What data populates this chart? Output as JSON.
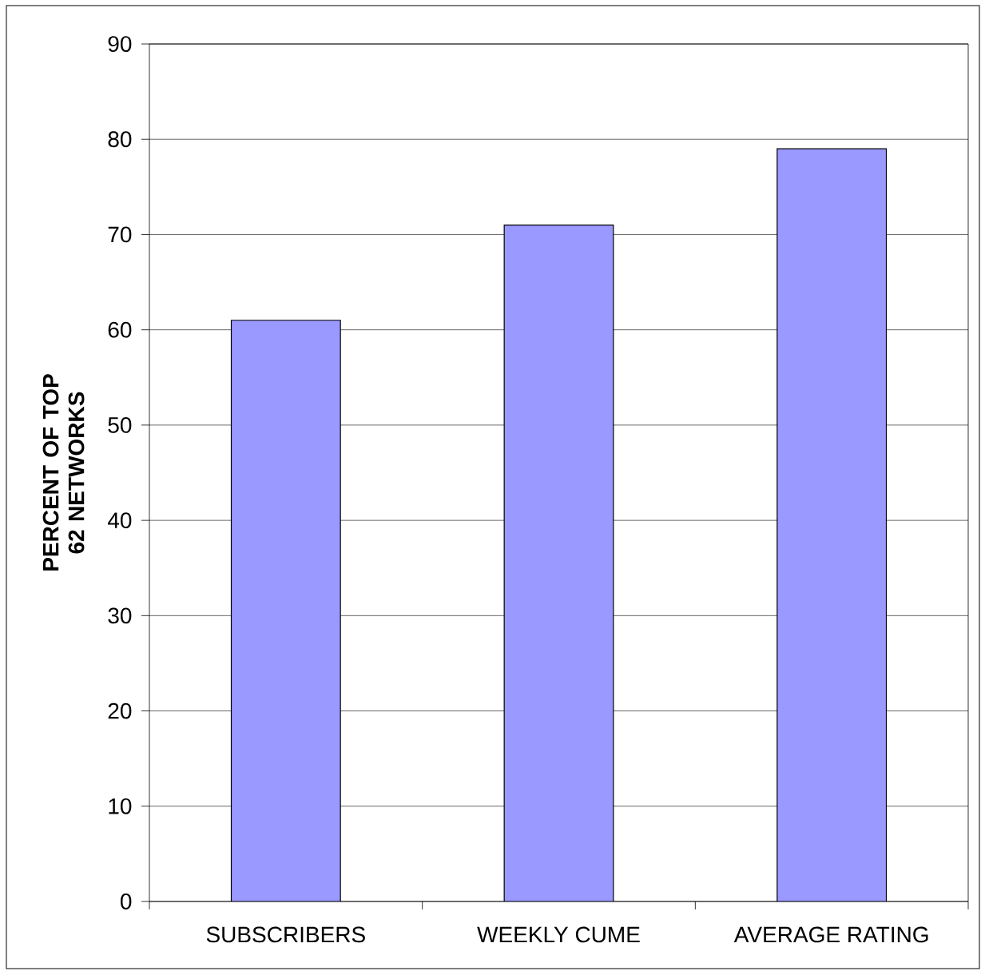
{
  "chart_data": {
    "type": "bar",
    "ylabel": "PERCENT OF TOP 62 NETWORKS",
    "categories": [
      "SUBSCRIBERS",
      "WEEKLY CUME",
      "AVERAGE RATING"
    ],
    "values": [
      61,
      71,
      79
    ],
    "color": "#9999ff",
    "ylim": [
      0,
      90
    ],
    "yticks": [
      0,
      10,
      20,
      30,
      40,
      50,
      60,
      70,
      80,
      90
    ],
    "grid": "y"
  }
}
